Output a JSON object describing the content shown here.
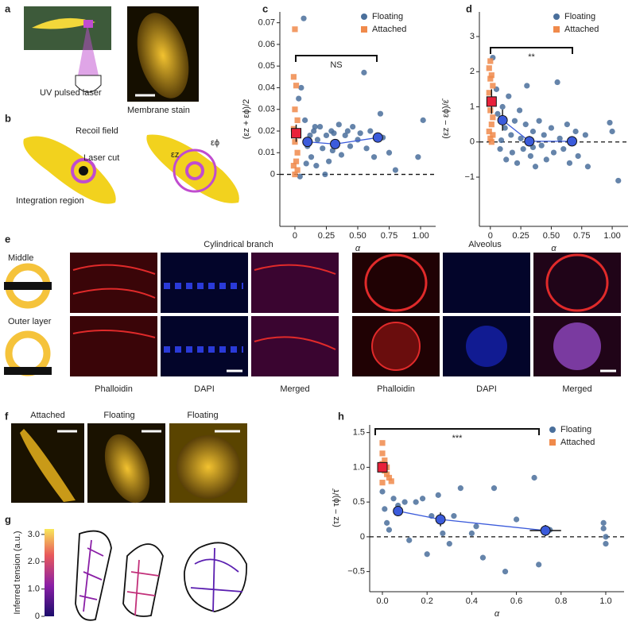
{
  "panel_labels": [
    "a",
    "b",
    "c",
    "d",
    "e",
    "f",
    "g",
    "h"
  ],
  "panel_a": {
    "laser_label": "UV pulsed laser",
    "stain_label": "Membrane stain"
  },
  "panel_b": {
    "recoil": "Recoil field",
    "cut": "Laser cut",
    "region": "Integration region",
    "eps_z": "εz",
    "eps_phi": "εϕ"
  },
  "panel_e": {
    "branch": "Cylindrical branch",
    "alveolus": "Alveolus",
    "middle": "Middle",
    "outer": "Outer layer",
    "columns": [
      "Phalloidin",
      "DAPI",
      "Merged",
      "Phalloidin",
      "DAPI",
      "Merged"
    ]
  },
  "panel_f": {
    "titles": [
      "Attached",
      "Floating",
      "Floating"
    ]
  },
  "panel_g": {
    "colorbar_label": "Inferred tension (a.u.)",
    "colorbar_lim": [
      0,
      3.2
    ],
    "colorbar_ticks": [
      {
        "value": 3,
        "label": "3.0"
      },
      {
        "value": 2,
        "label": "2.0"
      },
      {
        "value": 1,
        "label": "1.0"
      },
      0
    ]
  },
  "chart_data": [
    {
      "type": "scatter",
      "x_label": "α",
      "y_label": "(εz + εϕ)/2",
      "annotation": "NS",
      "legend": "upper right",
      "reference_line": 0,
      "xlim": [
        -0.12,
        1.12
      ],
      "ylim": [
        -0.024,
        0.075
      ],
      "xticks": [
        0,
        0.25,
        {
          "value": 0.5,
          "label": "0.50"
        },
        0.75,
        {
          "value": 1,
          "label": "1.00"
        }
      ],
      "yticks": [
        0,
        0.01,
        0.02,
        0.03,
        0.04,
        0.05,
        0.06,
        0.07
      ],
      "series": [
        {
          "name": "Floating",
          "color": "#4a6f9b",
          "marker": "circle",
          "x": [
            0.03,
            0.05,
            0.07,
            0.08,
            0.1,
            0.12,
            0.13,
            0.15,
            0.17,
            0.18,
            0.2,
            0.22,
            0.24,
            0.25,
            0.27,
            0.29,
            0.3,
            0.33,
            0.35,
            0.37,
            0.4,
            0.42,
            0.44,
            0.46,
            0.5,
            0.52,
            0.55,
            0.57,
            0.6,
            0.63,
            0.68,
            0.7,
            0.75,
            0.8,
            0.98,
            1.02,
            0.04,
            0.09,
            0.16,
            0.31
          ],
          "values": [
            0.035,
            0.04,
            0.072,
            0.025,
            0.013,
            0.018,
            0.008,
            0.02,
            0.004,
            0.016,
            0.022,
            0.012,
            0,
            0.018,
            0.006,
            0.02,
            0.011,
            0.015,
            0.023,
            0.009,
            0.018,
            0.02,
            0.013,
            0.022,
            0.016,
            0.019,
            0.047,
            0.012,
            0.02,
            0.008,
            0.028,
            0.017,
            0.01,
            0.002,
            0.008,
            0.025,
            -0.001,
            0.005,
            0.022,
            0.019
          ]
        },
        {
          "name": "Attached",
          "color": "#f08a4b",
          "marker": "square",
          "x": [
            0,
            -0.01,
            0.01,
            0,
            0.02,
            -0.01,
            0.01,
            0,
            0.02,
            0.01,
            -0.01,
            0.02,
            0
          ],
          "values": [
            0.067,
            0.045,
            0.041,
            0.03,
            0.025,
            0.021,
            0.018,
            0.015,
            0.01,
            0.006,
            0.004,
            0.002,
            0
          ]
        },
        {
          "color": "#e8213a",
          "marker": "square",
          "size": "large",
          "x": [
            0.01
          ],
          "values": [
            0.019
          ],
          "errors": [
            0.004
          ]
        },
        {
          "color": "#3b5bdb",
          "marker": "circle",
          "size": "large",
          "line": true,
          "x": [
            0.1,
            0.32,
            0.66
          ],
          "values": [
            0.015,
            0.014,
            0.017
          ],
          "errors": [
            0.002,
            0.002,
            0.002
          ]
        }
      ]
    },
    {
      "type": "scatter",
      "x_label": "α",
      "y_label": "(εz − εϕ)/ε̄",
      "annotation": "**",
      "legend": "upper right",
      "reference_line": 0,
      "xlim": [
        -0.09,
        1.13
      ],
      "ylim": [
        -2.4,
        3.7
      ],
      "xticks": [
        0,
        0.25,
        {
          "value": 0.5,
          "label": "0.50"
        },
        0.75,
        {
          "value": 1,
          "label": "1.00"
        }
      ],
      "yticks": [
        {
          "value": -1,
          "label": "−1"
        },
        0,
        1,
        2,
        3
      ],
      "series": [
        {
          "name": "Floating",
          "color": "#4a6f9b",
          "marker": "circle",
          "x": [
            0.02,
            0.05,
            0.06,
            0.08,
            0.1,
            0.12,
            0.13,
            0.15,
            0.17,
            0.18,
            0.2,
            0.22,
            0.24,
            0.25,
            0.27,
            0.29,
            0.3,
            0.33,
            0.35,
            0.37,
            0.4,
            0.42,
            0.44,
            0.46,
            0.5,
            0.52,
            0.55,
            0.57,
            0.6,
            0.63,
            0.65,
            0.7,
            0.72,
            0.78,
            0.8,
            0.98,
            1,
            1.05,
            0.09,
            0.35
          ],
          "values": [
            2.4,
            1.5,
            0.8,
            -0.2,
            1,
            0.4,
            -0.5,
            1.3,
            0.2,
            -0.3,
            0.6,
            -0.6,
            0.9,
            0.1,
            -0.2,
            0.5,
            1.6,
            -0.4,
            0.3,
            -0.7,
            0.6,
            -0.1,
            0.2,
            -0.5,
            0.4,
            -0.3,
            1.7,
            0.1,
            -0.2,
            0.5,
            -0.6,
            0.3,
            -0.4,
            0.2,
            -0.7,
            0.55,
            0.3,
            -1.1,
            0.05,
            -0.15
          ]
        },
        {
          "name": "Attached",
          "color": "#f08a4b",
          "marker": "square",
          "x": [
            0,
            -0.01,
            0.01,
            0,
            0.02,
            -0.01,
            0.01,
            0,
            0.02,
            0.01,
            -0.01,
            0.02,
            0,
            0.01
          ],
          "values": [
            2.3,
            2.1,
            1.9,
            1.8,
            1.6,
            1.4,
            1.2,
            0.9,
            0.7,
            0.5,
            0.3,
            0.2,
            0.1,
            0
          ]
        },
        {
          "color": "#e8213a",
          "marker": "square",
          "size": "large",
          "x": [
            0.01
          ],
          "values": [
            1.15
          ],
          "errors": [
            0.35
          ]
        },
        {
          "color": "#3b5bdb",
          "marker": "circle",
          "size": "large",
          "line": true,
          "x": [
            0.1,
            0.32,
            0.67
          ],
          "values": [
            0.62,
            0.02,
            0.02
          ],
          "errors": [
            0.3,
            0.15,
            0.1
          ]
        }
      ]
    },
    {
      "type": "scatter",
      "x_label": "α",
      "y_label": "(τz − τϕ)/τ̄",
      "annotation": "***",
      "legend": "upper right",
      "reference_line": 0,
      "xlim": [
        -0.057,
        1.082
      ],
      "ylim": [
        -0.79,
        1.61
      ],
      "xticks": [
        {
          "value": 0,
          "label": "0.0"
        },
        0.2,
        0.4,
        0.6,
        0.8,
        {
          "value": 1,
          "label": "1.0"
        }
      ],
      "yticks": [
        {
          "value": -0.5,
          "label": "−0.5"
        },
        0,
        0.5,
        {
          "value": 1,
          "label": "1.0"
        },
        1.5
      ],
      "series": [
        {
          "name": "Floating",
          "color": "#4a6f9b",
          "marker": "circle",
          "x": [
            0,
            0.01,
            0.02,
            0.03,
            0.05,
            0.07,
            0.1,
            0.12,
            0.15,
            0.18,
            0.2,
            0.22,
            0.25,
            0.27,
            0.3,
            0.32,
            0.35,
            0.4,
            0.42,
            0.45,
            0.5,
            0.55,
            0.6,
            0.68,
            0.7,
            0.75,
            0.99,
            1,
            1,
            0.99
          ],
          "values": [
            0.65,
            0.4,
            0.2,
            0.1,
            0.55,
            0.45,
            0.5,
            -0.05,
            0.5,
            0.55,
            -0.25,
            0.3,
            0.6,
            0.05,
            -0.1,
            0.3,
            0.7,
            0.05,
            0.15,
            -0.3,
            0.7,
            -0.5,
            0.25,
            0.85,
            -0.4,
            0.1,
            0.2,
            0,
            -0.1,
            0.12
          ]
        },
        {
          "name": "Attached",
          "color": "#f08a4b",
          "marker": "square",
          "x": [
            0,
            0,
            0.01,
            0,
            0.02,
            0.01,
            0.02,
            0.03,
            0.04,
            0
          ],
          "values": [
            1.35,
            1.2,
            1.1,
            1.05,
            1,
            0.95,
            0.9,
            0.85,
            0.8,
            0.78
          ]
        },
        {
          "color": "#e8213a",
          "marker": "square",
          "size": "large",
          "x": [
            0
          ],
          "values": [
            1
          ],
          "errors": [
            0.05
          ]
        },
        {
          "color": "#3b5bdb",
          "marker": "circle",
          "size": "large",
          "line": true,
          "x": [
            0.07,
            0.26,
            0.73
          ],
          "values": [
            0.37,
            0.25,
            0.09
          ],
          "errors": [
            0.06,
            0.1,
            0.08
          ],
          "xerrors": [
            0.01,
            0.02,
            0.07
          ]
        }
      ]
    }
  ]
}
